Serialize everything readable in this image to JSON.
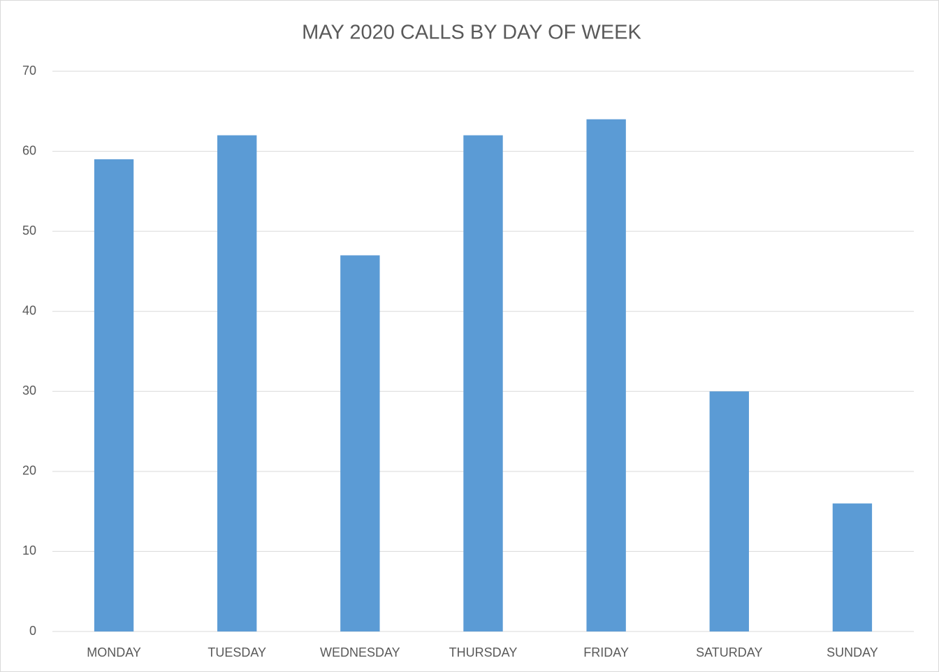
{
  "chart_data": {
    "type": "bar",
    "title": "MAY 2020 CALLS BY DAY OF WEEK",
    "categories": [
      "MONDAY",
      "TUESDAY",
      "WEDNESDAY",
      "THURSDAY",
      "FRIDAY",
      "SATURDAY",
      "SUNDAY"
    ],
    "values": [
      59,
      62,
      47,
      62,
      64,
      30,
      16
    ],
    "color": "#5b9bd5",
    "ylim": [
      0,
      70
    ],
    "yticks": [
      0,
      10,
      20,
      30,
      40,
      50,
      60,
      70
    ],
    "grid": true
  }
}
